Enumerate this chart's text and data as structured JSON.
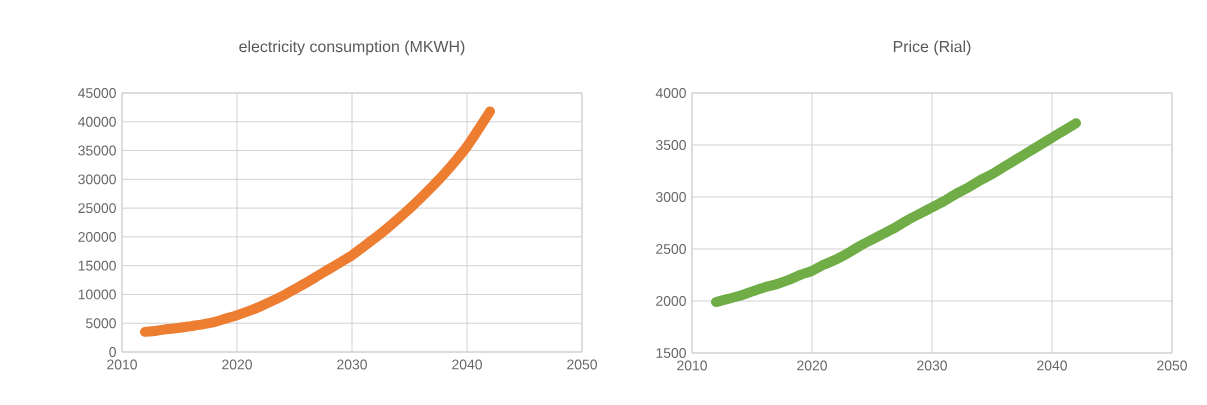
{
  "chart_data": [
    {
      "type": "line",
      "title": "electricity consumption (MKWH)",
      "grid": true,
      "xlim": [
        2010,
        2050
      ],
      "xticks": [
        2010,
        2020,
        2030,
        2040,
        2050
      ],
      "ylim": [
        0,
        45000
      ],
      "yticks": [
        0,
        5000,
        10000,
        15000,
        20000,
        25000,
        30000,
        35000,
        40000,
        45000
      ],
      "x": [
        2012,
        2013,
        2014,
        2015,
        2016,
        2017,
        2018,
        2019,
        2020,
        2021,
        2022,
        2023,
        2024,
        2025,
        2026,
        2027,
        2028,
        2029,
        2030,
        2031,
        2032,
        2033,
        2034,
        2035,
        2036,
        2037,
        2038,
        2039,
        2040,
        2041,
        2042
      ],
      "series": [
        {
          "color": "#ed7d31",
          "values": [
            3500,
            3700,
            4000,
            4200,
            4500,
            4800,
            5200,
            5800,
            6400,
            7100,
            7900,
            8800,
            9800,
            10900,
            12000,
            13200,
            14400,
            15600,
            16800,
            18300,
            19800,
            21400,
            23100,
            24900,
            26800,
            28800,
            30900,
            33200,
            35700,
            38700,
            41800
          ]
        }
      ]
    },
    {
      "type": "line",
      "title": "Price (Rial)",
      "grid": true,
      "xlim": [
        2010,
        2050
      ],
      "xticks": [
        2010,
        2020,
        2030,
        2040,
        2050
      ],
      "ylim": [
        1500,
        4000
      ],
      "yticks": [
        1500,
        2000,
        2500,
        3000,
        3500,
        4000
      ],
      "x": [
        2012,
        2013,
        2014,
        2015,
        2016,
        2017,
        2018,
        2019,
        2020,
        2021,
        2022,
        2023,
        2024,
        2025,
        2026,
        2027,
        2028,
        2029,
        2030,
        2031,
        2032,
        2033,
        2034,
        2035,
        2036,
        2037,
        2038,
        2039,
        2040,
        2041,
        2042
      ],
      "series": [
        {
          "color": "#70ad47",
          "values": [
            1990,
            2020,
            2050,
            2090,
            2130,
            2160,
            2200,
            2250,
            2290,
            2350,
            2400,
            2460,
            2530,
            2590,
            2650,
            2710,
            2780,
            2840,
            2900,
            2960,
            3030,
            3090,
            3160,
            3220,
            3290,
            3360,
            3430,
            3500,
            3570,
            3640,
            3710
          ]
        }
      ]
    }
  ]
}
